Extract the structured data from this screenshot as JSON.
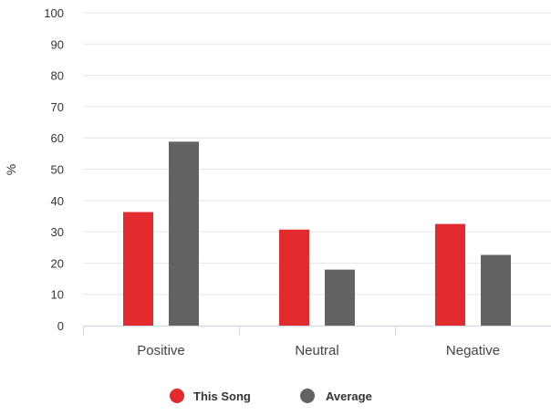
{
  "chart_data": {
    "type": "bar",
    "categories": [
      "Positive",
      "Neutral",
      "Negative"
    ],
    "series": [
      {
        "name": "This Song",
        "values": [
          36.3,
          30.7,
          32.5
        ],
        "color": "#e32b2f"
      },
      {
        "name": "Average",
        "values": [
          58.8,
          17.9,
          22.6
        ],
        "color": "#636363"
      }
    ],
    "ylabel": "%",
    "xlabel": "",
    "ylim": [
      0,
      100
    ],
    "yticks": [
      0,
      10,
      20,
      30,
      40,
      50,
      60,
      70,
      80,
      90,
      100
    ],
    "grid": true,
    "legend_position": "bottom-center"
  }
}
